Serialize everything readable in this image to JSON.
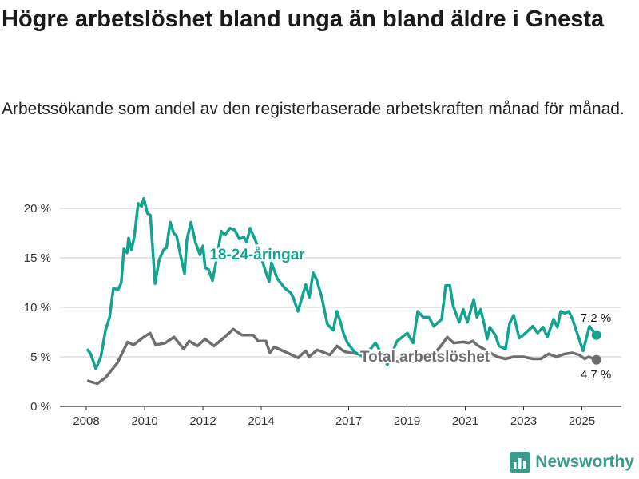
{
  "title": "Högre arbetslöshet bland unga än bland äldre i Gnesta",
  "subtitle": "Arbetssökande som andel av den registerbaserade arbetskraften månad för månad.",
  "logo": {
    "text": "Newsworthy",
    "icon": "newsworthy-bar-chart-icon"
  },
  "chart_data": {
    "type": "line",
    "title": "Högre arbetslöshet bland unga än bland äldre i Gnesta",
    "xlabel": "",
    "ylabel": "",
    "ylim": [
      0,
      20
    ],
    "xlim": [
      2007.1,
      2026.4
    ],
    "yticks": [
      0,
      5,
      10,
      15,
      20
    ],
    "ytick_labels": [
      "0 %",
      "5 %",
      "10 %",
      "15 %",
      "20 %"
    ],
    "xticks": [
      2008,
      2010,
      2012,
      2014,
      2017,
      2019,
      2021,
      2023,
      2025
    ],
    "xtick_labels": [
      "2008",
      "2010",
      "2012",
      "2014",
      "2017",
      "2019",
      "2021",
      "2023",
      "2025"
    ],
    "grid": true,
    "series": [
      {
        "name": "18-24-åringar",
        "color": "#14a38f",
        "end_label": "7,2 %",
        "points": [
          [
            2008.03,
            5.8
          ],
          [
            2008.15,
            5.3
          ],
          [
            2008.33,
            3.8
          ],
          [
            2008.5,
            5.0
          ],
          [
            2008.66,
            7.7
          ],
          [
            2008.8,
            9
          ],
          [
            2008.93,
            11.9
          ],
          [
            2009.1,
            11.8
          ],
          [
            2009.2,
            12.5
          ],
          [
            2009.29,
            15.9
          ],
          [
            2009.4,
            15.5
          ],
          [
            2009.45,
            17
          ],
          [
            2009.55,
            15.8
          ],
          [
            2009.65,
            17.2
          ],
          [
            2009.78,
            20.5
          ],
          [
            2009.9,
            20.2
          ],
          [
            2009.97,
            21
          ],
          [
            2010.1,
            19.5
          ],
          [
            2010.2,
            19.3
          ],
          [
            2010.36,
            12.4
          ],
          [
            2010.5,
            14.8
          ],
          [
            2010.65,
            15.8
          ],
          [
            2010.75,
            16
          ],
          [
            2010.88,
            18.6
          ],
          [
            2011.0,
            17.5
          ],
          [
            2011.1,
            17.2
          ],
          [
            2011.25,
            15
          ],
          [
            2011.37,
            13.4
          ],
          [
            2011.45,
            16.8
          ],
          [
            2011.59,
            18.6
          ],
          [
            2011.75,
            16.5
          ],
          [
            2011.9,
            15.3
          ],
          [
            2012.0,
            16.2
          ],
          [
            2012.08,
            14.0
          ],
          [
            2012.2,
            13.8
          ],
          [
            2012.33,
            12.7
          ],
          [
            2012.45,
            14.5
          ],
          [
            2012.63,
            17.7
          ],
          [
            2012.75,
            17.3
          ],
          [
            2012.93,
            18.0
          ],
          [
            2013.1,
            17.8
          ],
          [
            2013.25,
            16.9
          ],
          [
            2013.4,
            17.1
          ],
          [
            2013.5,
            16.6
          ],
          [
            2013.62,
            18.0
          ],
          [
            2013.81,
            16.7
          ],
          [
            2014.0,
            15
          ],
          [
            2014.2,
            13.2
          ],
          [
            2014.27,
            12.6
          ],
          [
            2014.35,
            14.5
          ],
          [
            2014.55,
            12.9
          ],
          [
            2014.82,
            11.9
          ],
          [
            2015.0,
            11.5
          ],
          [
            2015.1,
            11.0
          ],
          [
            2015.26,
            9.6
          ],
          [
            2015.53,
            12.3
          ],
          [
            2015.65,
            11.0
          ],
          [
            2015.78,
            13.5
          ],
          [
            2015.9,
            12.8
          ],
          [
            2016.08,
            11
          ],
          [
            2016.27,
            8.3
          ],
          [
            2016.47,
            7.7
          ],
          [
            2016.6,
            9.6
          ],
          [
            2016.75,
            8.2
          ],
          [
            2016.82,
            7.4
          ],
          [
            2016.96,
            6.4
          ],
          [
            2017.2,
            5.5
          ],
          [
            2017.5,
            5.0
          ],
          [
            2017.75,
            5.8
          ],
          [
            2017.92,
            6.4
          ],
          [
            2018.1,
            5.5
          ],
          [
            2018.33,
            4.2
          ],
          [
            2018.5,
            5.5
          ],
          [
            2018.66,
            6.6
          ],
          [
            2019.01,
            7.4
          ],
          [
            2019.21,
            6.4
          ],
          [
            2019.37,
            9.6
          ],
          [
            2019.56,
            9.0
          ],
          [
            2019.75,
            9.0
          ],
          [
            2019.92,
            8.1
          ],
          [
            2020.19,
            8.8
          ],
          [
            2020.33,
            12.2
          ],
          [
            2020.47,
            12.2
          ],
          [
            2020.58,
            10.2
          ],
          [
            2020.79,
            8.5
          ],
          [
            2020.93,
            9.8
          ],
          [
            2021.07,
            8.5
          ],
          [
            2021.29,
            10.8
          ],
          [
            2021.4,
            9.0
          ],
          [
            2021.53,
            9.8
          ],
          [
            2021.67,
            8.0
          ],
          [
            2021.75,
            6.8
          ],
          [
            2021.84,
            8.0
          ],
          [
            2022.03,
            7.2
          ],
          [
            2022.16,
            6.1
          ],
          [
            2022.38,
            5.8
          ],
          [
            2022.52,
            8.4
          ],
          [
            2022.66,
            9.2
          ],
          [
            2022.85,
            6.9
          ],
          [
            2022.99,
            7.2
          ],
          [
            2023.32,
            8.1
          ],
          [
            2023.48,
            7.4
          ],
          [
            2023.67,
            8.0
          ],
          [
            2023.81,
            7.0
          ],
          [
            2024.03,
            8.8
          ],
          [
            2024.16,
            8.0
          ],
          [
            2024.27,
            9.6
          ],
          [
            2024.41,
            9.4
          ],
          [
            2024.55,
            9.6
          ],
          [
            2024.68,
            8.8
          ],
          [
            2025.04,
            5.6
          ],
          [
            2025.26,
            8.1
          ],
          [
            2025.5,
            7.2
          ]
        ]
      },
      {
        "name": "Total arbetslöshet",
        "color": "#6e6d72",
        "end_label": "4,7 %",
        "points": [
          [
            2008.03,
            2.6
          ],
          [
            2008.38,
            2.3
          ],
          [
            2008.66,
            2.9
          ],
          [
            2009.07,
            4.4
          ],
          [
            2009.42,
            6.5
          ],
          [
            2009.62,
            6.2
          ],
          [
            2009.97,
            7.0
          ],
          [
            2010.19,
            7.4
          ],
          [
            2010.38,
            6.2
          ],
          [
            2010.71,
            6.4
          ],
          [
            2011.01,
            7.0
          ],
          [
            2011.34,
            5.8
          ],
          [
            2011.53,
            6.6
          ],
          [
            2011.81,
            6.1
          ],
          [
            2012.08,
            6.8
          ],
          [
            2012.38,
            6.1
          ],
          [
            2012.71,
            6.9
          ],
          [
            2013.04,
            7.8
          ],
          [
            2013.34,
            7.2
          ],
          [
            2013.73,
            7.2
          ],
          [
            2013.89,
            6.6
          ],
          [
            2014.16,
            6.6
          ],
          [
            2014.3,
            5.4
          ],
          [
            2014.44,
            6.0
          ],
          [
            2014.9,
            5.4
          ],
          [
            2015.26,
            4.9
          ],
          [
            2015.53,
            5.6
          ],
          [
            2015.64,
            5.0
          ],
          [
            2015.92,
            5.7
          ],
          [
            2016.36,
            5.2
          ],
          [
            2016.6,
            6.1
          ],
          [
            2016.82,
            5.6
          ],
          [
            2016.9,
            5.5
          ],
          [
            2017.3,
            5.3
          ],
          [
            2017.8,
            5.0
          ],
          [
            2018.3,
            4.6
          ],
          [
            2018.8,
            4.5
          ],
          [
            2019.3,
            4.5
          ],
          [
            2019.8,
            4.8
          ],
          [
            2020.19,
            6.2
          ],
          [
            2020.38,
            7.0
          ],
          [
            2020.6,
            6.4
          ],
          [
            2020.93,
            6.5
          ],
          [
            2021.12,
            6.4
          ],
          [
            2021.26,
            6.6
          ],
          [
            2021.4,
            6.2
          ],
          [
            2021.8,
            5.5
          ],
          [
            2022.1,
            5.0
          ],
          [
            2022.38,
            4.8
          ],
          [
            2022.66,
            5.0
          ],
          [
            2022.99,
            5.0
          ],
          [
            2023.32,
            4.8
          ],
          [
            2023.59,
            4.8
          ],
          [
            2023.86,
            5.3
          ],
          [
            2024.14,
            5.0
          ],
          [
            2024.41,
            5.3
          ],
          [
            2024.68,
            5.4
          ],
          [
            2024.9,
            5.2
          ],
          [
            2025.1,
            4.8
          ],
          [
            2025.23,
            5.0
          ],
          [
            2025.5,
            4.7
          ]
        ]
      }
    ]
  }
}
